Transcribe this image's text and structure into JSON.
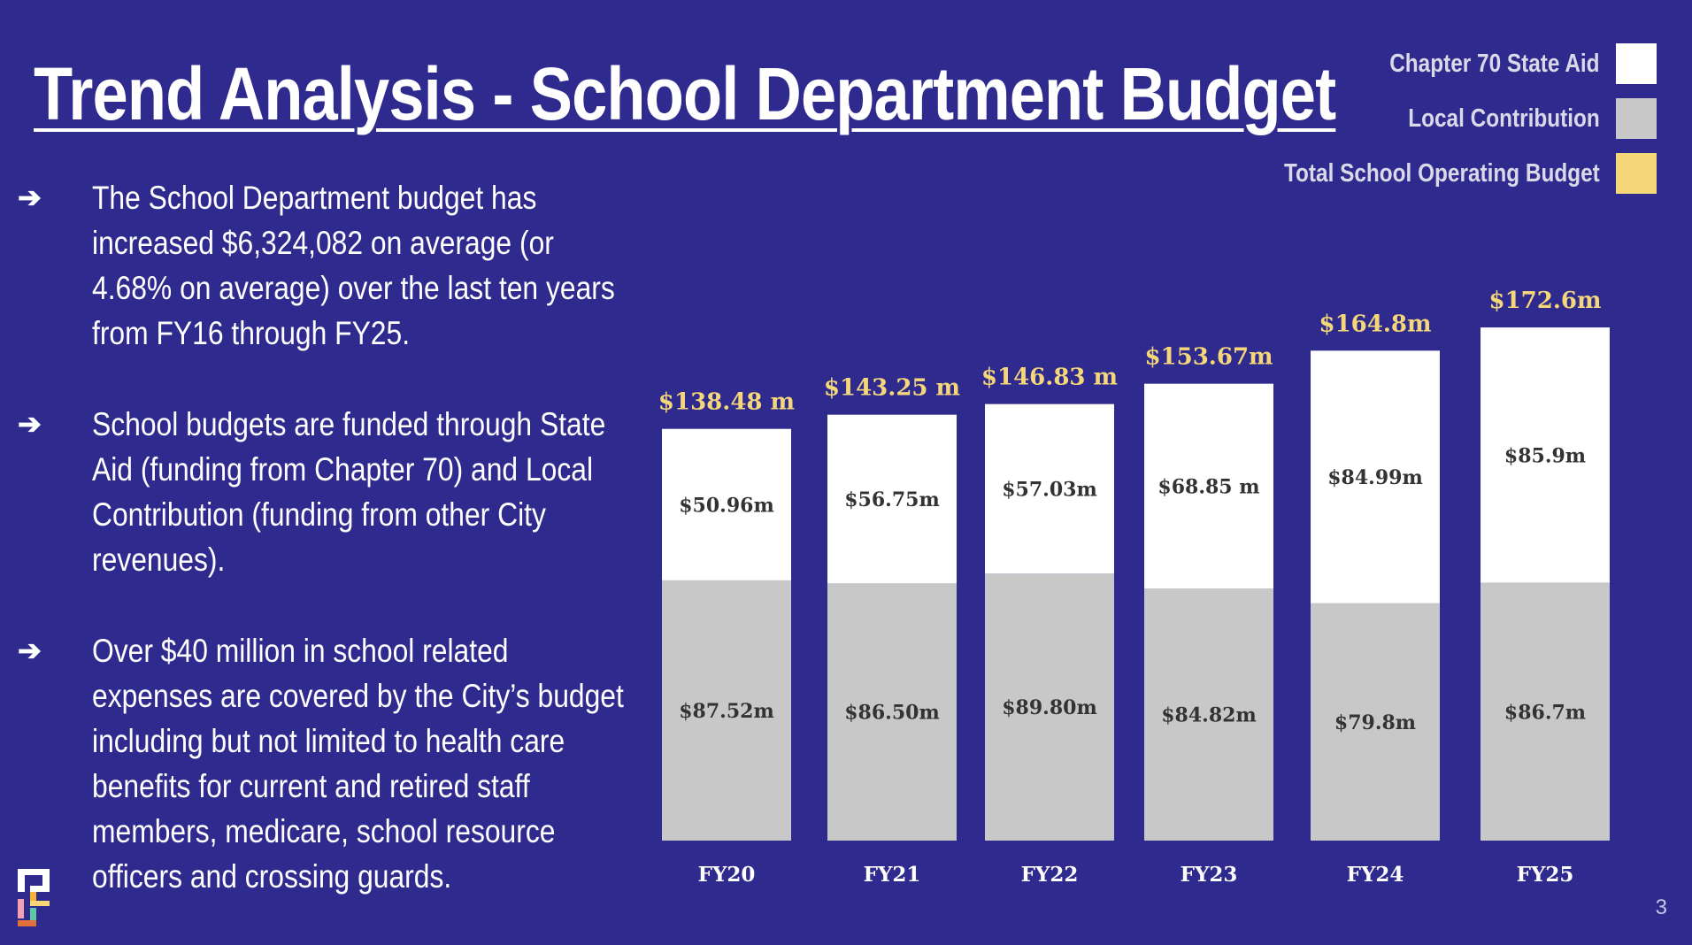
{
  "title": "Trend Analysis - School Department Budget",
  "legend": [
    {
      "label": "Chapter 70 State Aid",
      "color": "#ffffff"
    },
    {
      "label": "Local Contribution",
      "color": "#c8c8c8"
    },
    {
      "label": "Total School Operating Budget",
      "color": "#f5d77a"
    }
  ],
  "bullets": [
    {
      "arrow": "➔",
      "text": "The School Department budget has increased $6,324,082 on average (or 4.68% on average) over the last ten years from FY16 through FY25."
    },
    {
      "arrow": "➔",
      "text": "School budgets are funded through State Aid (funding from Chapter 70) and Local Contribution (funding from other City revenues)."
    },
    {
      "arrow": "➔",
      "text": "Over $40 million in school related expenses are covered by the City’s budget including but not limited to health care benefits for current and retired staff members, medicare, school resource officers and crossing guards."
    }
  ],
  "page_number": "3",
  "colors": {
    "background": "#2f2a8e",
    "state_aid": "#ffffff",
    "local": "#c8c8c8",
    "total_label": "#f5d77a",
    "value_text": "#333333"
  },
  "chart_data": {
    "type": "bar",
    "stacked": true,
    "categories": [
      "FY20",
      "FY21",
      "FY22",
      "FY23",
      "FY24",
      "FY25"
    ],
    "series": [
      {
        "name": "Local Contribution",
        "values": [
          87.52,
          86.5,
          89.8,
          84.82,
          79.8,
          86.7
        ],
        "labels": [
          "$87.52m",
          "$86.50m",
          "$89.80m",
          "$84.82m",
          "$79.8m",
          "$86.7m"
        ]
      },
      {
        "name": "Chapter 70 State Aid",
        "values": [
          50.96,
          56.75,
          57.03,
          68.85,
          84.99,
          85.9
        ],
        "labels": [
          "$50.96m",
          "$56.75m",
          "$57.03m",
          "$68.85 m",
          "$84.99m",
          "$85.9m"
        ]
      }
    ],
    "totals": {
      "name": "Total School Operating Budget",
      "values": [
        138.48,
        143.25,
        146.83,
        153.67,
        164.8,
        172.6
      ],
      "labels": [
        "$138.48 m",
        "$143.25 m",
        "$146.83 m",
        "$153.67m",
        "$164.8m",
        "$172.6m"
      ]
    },
    "ylim": [
      0,
      175
    ],
    "grid": false,
    "legend_position": "top-right"
  }
}
